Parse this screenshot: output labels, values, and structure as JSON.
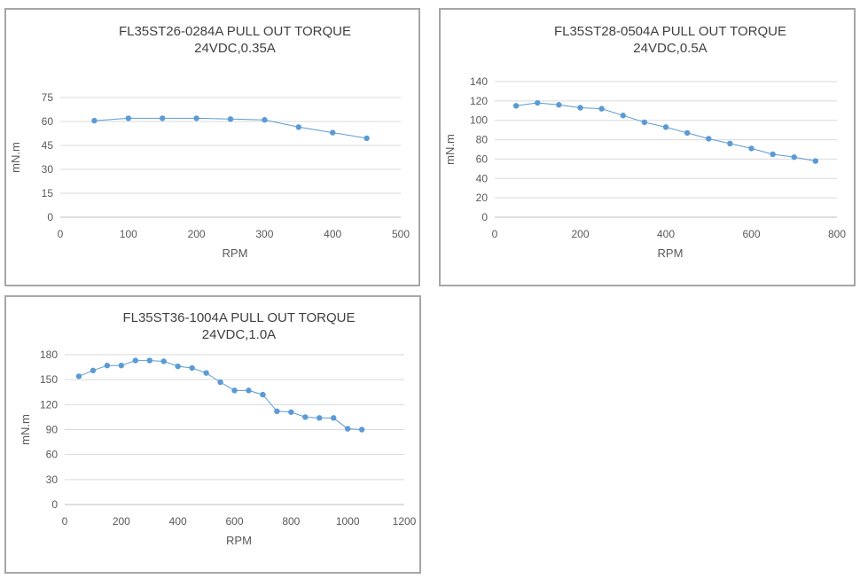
{
  "chart_data": [
    {
      "type": "line",
      "title": "FL35ST26-0284A PULL OUT TORQUE",
      "subtitle": "24VDC,0.35A",
      "xlabel": "RPM",
      "ylabel": "mN.m",
      "xlim": [
        0,
        500
      ],
      "ylim": [
        0,
        75
      ],
      "xticks": [
        0,
        100,
        200,
        300,
        400,
        500
      ],
      "yticks": [
        0,
        15,
        30,
        45,
        60,
        75
      ],
      "grid": true,
      "legend": "none",
      "color": "#5b9bd5",
      "series": [
        {
          "x": [
            50,
            100,
            150,
            200,
            250,
            300,
            350,
            400,
            450
          ],
          "y": [
            60.5,
            62,
            62,
            62,
            61.5,
            61,
            56.5,
            53,
            49.5
          ]
        }
      ]
    },
    {
      "type": "line",
      "title": "FL35ST28-0504A PULL OUT TORQUE",
      "subtitle": "24VDC,0.5A",
      "xlabel": "RPM",
      "ylabel": "mN.m",
      "xlim": [
        0,
        800
      ],
      "ylim": [
        0,
        140
      ],
      "xticks": [
        0,
        200,
        400,
        600,
        800
      ],
      "yticks": [
        0,
        20,
        40,
        60,
        80,
        100,
        120,
        140
      ],
      "grid": true,
      "legend": "none",
      "color": "#5b9bd5",
      "series": [
        {
          "x": [
            50,
            100,
            150,
            200,
            250,
            300,
            350,
            400,
            450,
            500,
            550,
            600,
            650,
            700,
            750
          ],
          "y": [
            115,
            118,
            116,
            113,
            112,
            105,
            98,
            93,
            87,
            81,
            76,
            71,
            65,
            62,
            58
          ]
        }
      ]
    },
    {
      "type": "line",
      "title": "FL35ST36-1004A PULL OUT TORQUE",
      "subtitle": "24VDC,1.0A",
      "xlabel": "RPM",
      "ylabel": "mN.m",
      "xlim": [
        0,
        1200
      ],
      "ylim": [
        0,
        180
      ],
      "xticks": [
        0,
        200,
        400,
        600,
        800,
        1000,
        1200
      ],
      "yticks": [
        0,
        30,
        60,
        90,
        120,
        150,
        180
      ],
      "grid": true,
      "legend": "none",
      "color": "#5b9bd5",
      "series": [
        {
          "x": [
            50,
            100,
            150,
            200,
            250,
            300,
            350,
            400,
            450,
            500,
            550,
            600,
            650,
            700,
            750,
            800,
            850,
            900,
            950,
            1000,
            1050
          ],
          "y": [
            154,
            161,
            167,
            167,
            173,
            173,
            172,
            166,
            164,
            158,
            147,
            137,
            137,
            132,
            112,
            111,
            105,
            104,
            104,
            91,
            90
          ]
        }
      ]
    }
  ]
}
